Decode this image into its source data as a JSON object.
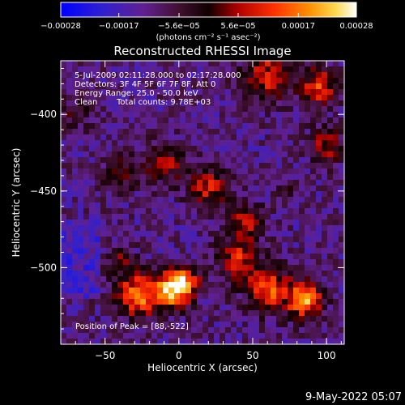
{
  "chart_data": {
    "type": "heatmap",
    "title": "Reconstructed RHESSI Image",
    "xlabel": "Heliocentric X (arcsec)",
    "ylabel": "Heliocentric Y (arcsec)",
    "xlim": [
      -80,
      112
    ],
    "ylim": [
      -550,
      -365
    ],
    "x_ticks": [
      -50,
      0,
      50,
      100
    ],
    "x_tick_labels": [
      "−50",
      "0",
      "50",
      "100"
    ],
    "y_ticks": [
      -400,
      -450,
      -500
    ],
    "y_tick_labels": [
      "−400",
      "−450",
      "−500"
    ],
    "colorbar": {
      "min": -0.00028,
      "max": 0.00028,
      "ticks": [
        -0.00028,
        -0.00017,
        -5.6e-05,
        5.6e-05,
        0.00017,
        0.00028
      ],
      "tick_labels": [
        "−0.00028",
        "−0.00017",
        "−5.6e−05",
        "5.6e−05",
        "0.00017",
        "0.00028"
      ],
      "unit_label": "(photons cm⁻² s⁻¹ asec⁻²)",
      "colormap": [
        "#0000ff",
        "#4020c0",
        "#602080",
        "#501030",
        "#200000",
        "#a00000",
        "#ff2000",
        "#ff8000",
        "#ffd040",
        "#ffffff"
      ]
    },
    "annotations": {
      "time_range": "5-Jul-2009 02:11:28.000 to 02:17:28.000",
      "detectors": "Detectors: 3F 4F 5F 6F 7F 8F, Att 0",
      "energy_range": "Energy Range: 25.0 - 50.0 keV",
      "method": "Clean",
      "total_counts": "Total counts: 9.78E+03",
      "peak_position": "Position of Peak = [88,-522]"
    },
    "peak": {
      "x": 88,
      "y": -522
    },
    "grid": false
  },
  "footer": {
    "date_stamp": "9-May-2022 05:07"
  }
}
